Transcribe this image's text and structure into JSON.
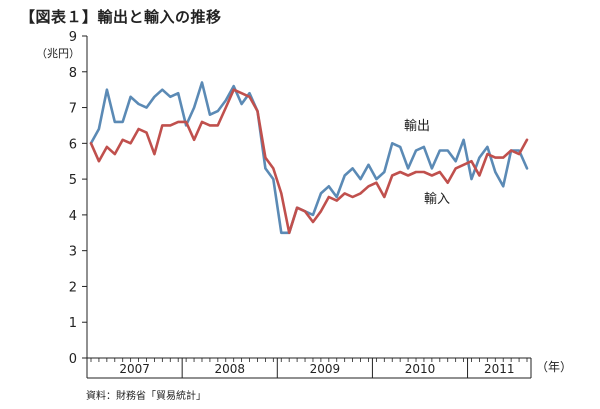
{
  "chart_data": {
    "type": "line",
    "title": "【図表１】輸出と輸入の推移",
    "ylabel": "（兆円）",
    "xlabel": "（年）",
    "ylim": [
      0,
      9
    ],
    "yticks": [
      "0",
      "1",
      "2",
      "3",
      "4",
      "5",
      "6",
      "7",
      "8",
      "9"
    ],
    "year_labels": [
      "2007",
      "2008",
      "2009",
      "2010",
      "2011"
    ],
    "grid": false,
    "source": "資料：財務省「貿易統計」",
    "series": [
      {
        "name": "輸出",
        "color": "#5b8ab5",
        "values": [
          6.0,
          6.4,
          7.5,
          6.6,
          6.6,
          7.3,
          7.1,
          7.0,
          7.3,
          7.5,
          7.3,
          7.4,
          6.5,
          7.0,
          7.7,
          6.8,
          6.9,
          7.2,
          7.6,
          7.1,
          7.4,
          6.9,
          5.3,
          5.0,
          3.5,
          3.5,
          4.2,
          4.1,
          4.0,
          4.6,
          4.8,
          4.5,
          5.1,
          5.3,
          5.0,
          5.4,
          5.0,
          5.2,
          6.0,
          5.9,
          5.3,
          5.8,
          5.9,
          5.3,
          5.8,
          5.8,
          5.5,
          6.1,
          5.0,
          5.6,
          5.9,
          5.2,
          4.8,
          5.8,
          5.8,
          5.3
        ]
      },
      {
        "name": "輸入",
        "color": "#c0504d",
        "values": [
          6.0,
          5.5,
          5.9,
          5.7,
          6.1,
          6.0,
          6.4,
          6.3,
          5.7,
          6.5,
          6.5,
          6.6,
          6.6,
          6.1,
          6.6,
          6.5,
          6.5,
          7.0,
          7.5,
          7.4,
          7.3,
          6.9,
          5.6,
          5.3,
          4.6,
          3.5,
          4.2,
          4.1,
          3.8,
          4.1,
          4.5,
          4.4,
          4.6,
          4.5,
          4.6,
          4.8,
          4.9,
          4.5,
          5.1,
          5.2,
          5.1,
          5.2,
          5.2,
          5.1,
          5.2,
          4.9,
          5.3,
          5.4,
          5.5,
          5.1,
          5.7,
          5.6,
          5.6,
          5.8,
          5.7,
          6.1
        ]
      }
    ]
  },
  "annotations": {
    "export_label": "輸出",
    "import_label": "輸入"
  }
}
